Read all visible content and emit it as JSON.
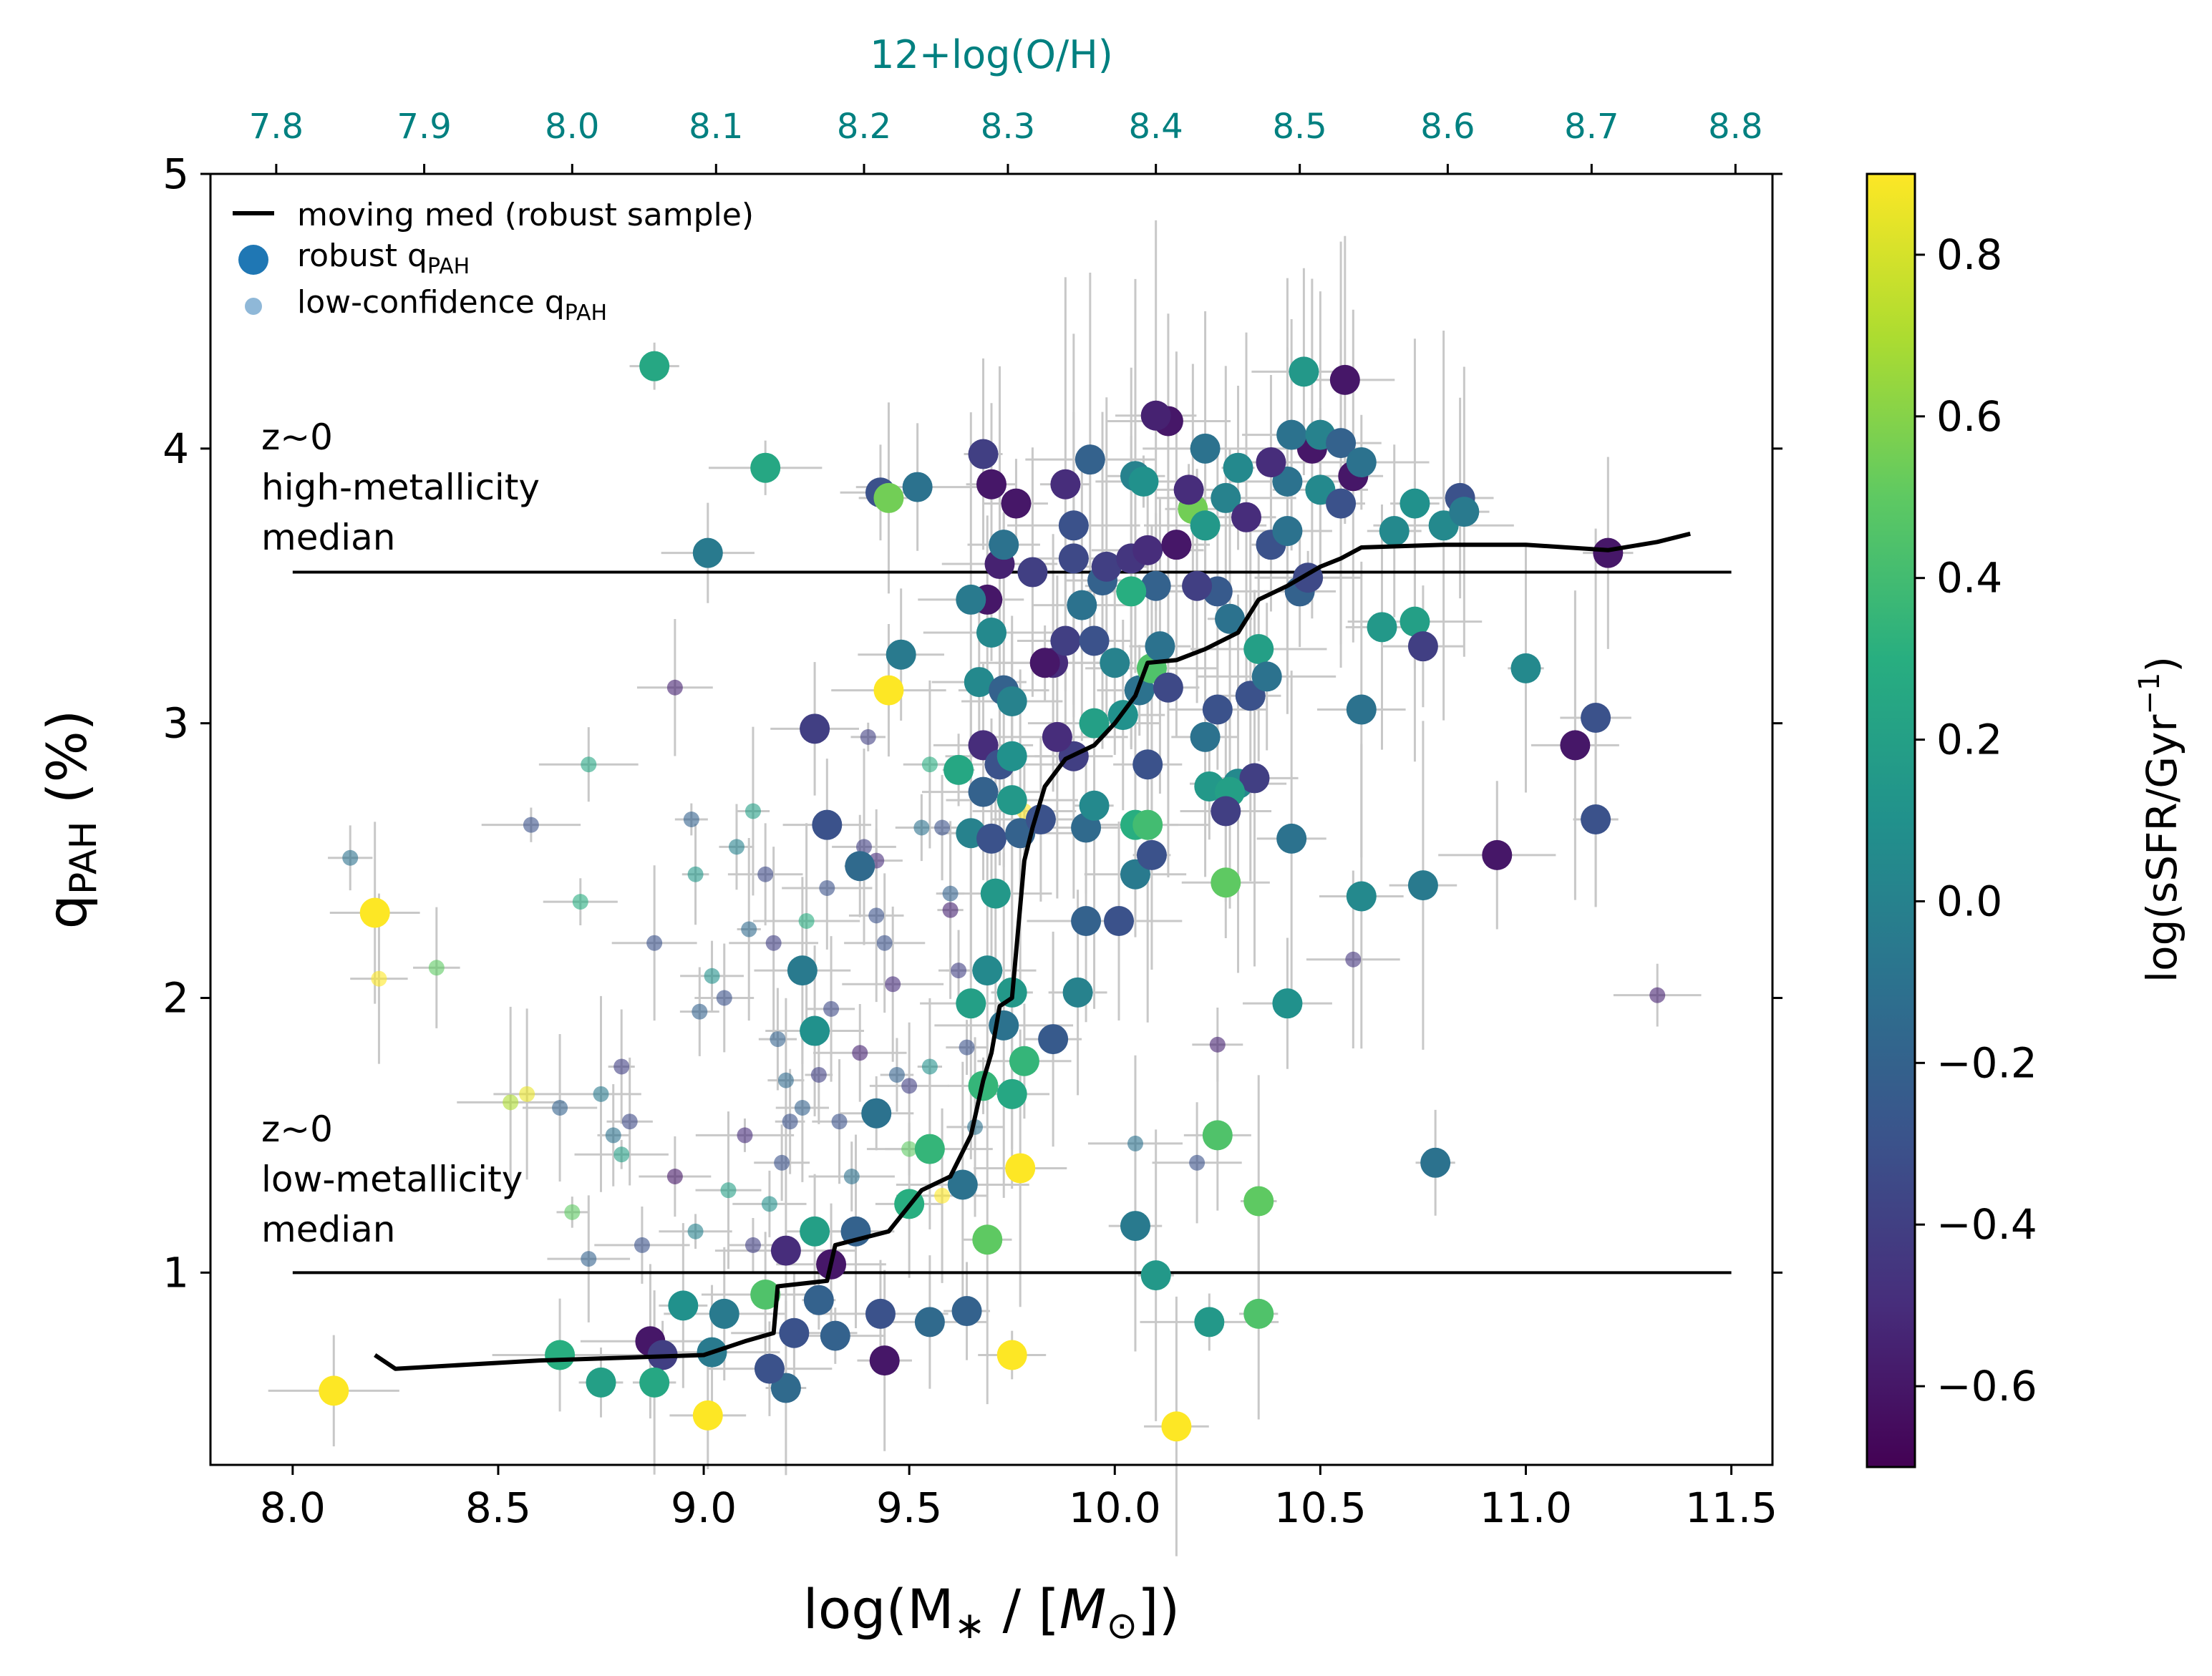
{
  "colors": {
    "top_axis": "#008080",
    "median_line": "#000000",
    "errorbar": "#c8c8c8",
    "reference_line": "#000000"
  },
  "chart_data": {
    "type": "scatter",
    "xlabel_main": "log(M",
    "xlabel_sub": "∗",
    "xlabel_rest": " / [",
    "xlabel_unit_m": "M",
    "xlabel_unit_sub": "⊙",
    "xlabel_close": "])",
    "ylabel_main": "q",
    "ylabel_sub": "PAH",
    "ylabel_rest": " (%)",
    "xlim": [
      7.8,
      11.6
    ],
    "ylim": [
      0.3,
      5.0
    ],
    "x_ticks": [
      "8.0",
      "8.5",
      "9.0",
      "9.5",
      "10.0",
      "10.5",
      "11.0",
      "11.5"
    ],
    "y_ticks": [
      "1",
      "2",
      "3",
      "4",
      "5"
    ],
    "top_axis": {
      "label": "12+log(O/H)",
      "ticks": [
        "7.8",
        "7.9",
        "8.0",
        "8.1",
        "8.2",
        "8.3",
        "8.4",
        "8.5",
        "8.6",
        "8.7",
        "8.8"
      ],
      "tick_logmass": [
        7.96,
        8.32,
        8.68,
        9.03,
        9.39,
        9.74,
        10.1,
        10.45,
        10.81,
        11.16,
        11.51
      ]
    },
    "colorbar": {
      "label": "log(sSFR/Gyr",
      "label_sup": "−1",
      "label_close": ")",
      "range": [
        -0.7,
        0.9
      ],
      "ticks": [
        "−0.6",
        "−0.4",
        "−0.2",
        "0.0",
        "0.2",
        "0.4",
        "0.6",
        "0.8"
      ],
      "tick_values": [
        -0.6,
        -0.4,
        -0.2,
        0.0,
        0.2,
        0.4,
        0.6,
        0.8
      ]
    },
    "legend": {
      "placement": "top-left",
      "median_label": "moving med (robust sample)",
      "robust_label": "robust q",
      "robust_sub": "PAH",
      "lowconf_label": "low-confidence q",
      "lowconf_sub": "PAH"
    },
    "reference_lines": [
      {
        "y": 3.55,
        "x_range": [
          8.0,
          11.5
        ],
        "label_lines": [
          "z~0",
          "high-metallicity",
          "median"
        ]
      },
      {
        "y": 1.0,
        "x_range": [
          8.0,
          11.5
        ],
        "label_lines": [
          "z~0",
          "low-metallicity",
          "median"
        ]
      }
    ],
    "moving_median": [
      [
        8.2,
        0.7
      ],
      [
        8.25,
        0.65
      ],
      [
        8.6,
        0.68
      ],
      [
        9.0,
        0.7
      ],
      [
        9.1,
        0.75
      ],
      [
        9.17,
        0.78
      ],
      [
        9.18,
        0.95
      ],
      [
        9.3,
        0.97
      ],
      [
        9.32,
        1.1
      ],
      [
        9.45,
        1.15
      ],
      [
        9.53,
        1.3
      ],
      [
        9.6,
        1.35
      ],
      [
        9.65,
        1.5
      ],
      [
        9.68,
        1.7
      ],
      [
        9.7,
        1.8
      ],
      [
        9.72,
        1.97
      ],
      [
        9.75,
        2.0
      ],
      [
        9.78,
        2.5
      ],
      [
        9.8,
        2.62
      ],
      [
        9.83,
        2.77
      ],
      [
        9.88,
        2.87
      ],
      [
        9.95,
        2.92
      ],
      [
        10.0,
        3.0
      ],
      [
        10.05,
        3.1
      ],
      [
        10.08,
        3.22
      ],
      [
        10.15,
        3.23
      ],
      [
        10.22,
        3.27
      ],
      [
        10.3,
        3.33
      ],
      [
        10.35,
        3.45
      ],
      [
        10.42,
        3.5
      ],
      [
        10.5,
        3.57
      ],
      [
        10.55,
        3.6
      ],
      [
        10.6,
        3.64
      ],
      [
        10.8,
        3.65
      ],
      [
        11.0,
        3.65
      ],
      [
        11.2,
        3.63
      ],
      [
        11.32,
        3.66
      ],
      [
        11.4,
        3.69
      ]
    ],
    "robust_points": [
      [
        8.88,
        4.3,
        0.25
      ],
      [
        9.15,
        3.93,
        0.25
      ],
      [
        9.01,
        3.62,
        -0.05
      ],
      [
        9.43,
        3.84,
        -0.3
      ],
      [
        9.45,
        3.82,
        0.55
      ],
      [
        9.52,
        3.86,
        -0.1
      ],
      [
        9.45,
        3.12,
        0.9
      ],
      [
        9.48,
        3.25,
        -0.05
      ],
      [
        9.27,
        2.98,
        -0.4
      ],
      [
        9.3,
        2.63,
        -0.3
      ],
      [
        9.38,
        2.48,
        -0.15
      ],
      [
        9.24,
        2.1,
        -0.05
      ],
      [
        9.27,
        1.88,
        0.1
      ],
      [
        9.42,
        1.58,
        -0.1
      ],
      [
        9.55,
        1.45,
        0.35
      ],
      [
        9.5,
        1.25,
        0.3
      ],
      [
        9.37,
        1.15,
        -0.2
      ],
      [
        9.27,
        1.15,
        0.2
      ],
      [
        9.2,
        1.08,
        -0.5
      ],
      [
        9.31,
        1.03,
        -0.6
      ],
      [
        9.15,
        0.92,
        0.45
      ],
      [
        9.22,
        0.78,
        -0.3
      ],
      [
        9.28,
        0.9,
        -0.2
      ],
      [
        9.32,
        0.77,
        -0.2
      ],
      [
        9.43,
        0.85,
        -0.3
      ],
      [
        9.44,
        0.68,
        -0.6
      ],
      [
        9.55,
        0.82,
        -0.15
      ],
      [
        9.64,
        0.86,
        -0.2
      ],
      [
        9.63,
        1.32,
        -0.1
      ],
      [
        9.69,
        1.12,
        0.5
      ],
      [
        9.75,
        0.7,
        0.9
      ],
      [
        9.77,
        1.38,
        0.9
      ],
      [
        9.68,
        1.68,
        0.35
      ],
      [
        9.75,
        1.65,
        0.25
      ],
      [
        9.78,
        1.77,
        0.35
      ],
      [
        9.75,
        2.02,
        0.15
      ],
      [
        9.65,
        1.98,
        0.2
      ],
      [
        9.73,
        1.9,
        -0.1
      ],
      [
        9.85,
        1.85,
        -0.25
      ],
      [
        9.91,
        2.02,
        0.0
      ],
      [
        9.93,
        2.28,
        -0.2
      ],
      [
        10.01,
        2.28,
        -0.3
      ],
      [
        10.05,
        2.45,
        -0.05
      ],
      [
        10.09,
        2.52,
        -0.3
      ],
      [
        10.05,
        2.63,
        0.3
      ],
      [
        10.08,
        2.63,
        0.4
      ],
      [
        9.93,
        2.62,
        -0.15
      ],
      [
        9.95,
        2.7,
        0.05
      ],
      [
        9.9,
        2.88,
        -0.4
      ],
      [
        9.86,
        2.95,
        -0.5
      ],
      [
        9.95,
        3.0,
        0.2
      ],
      [
        10.02,
        3.03,
        0.1
      ],
      [
        10.08,
        2.85,
        -0.3
      ],
      [
        10.06,
        3.12,
        -0.1
      ],
      [
        10.0,
        3.22,
        0.0
      ],
      [
        10.09,
        3.2,
        0.45
      ],
      [
        10.13,
        3.13,
        -0.35
      ],
      [
        10.22,
        2.95,
        -0.1
      ],
      [
        10.25,
        3.05,
        -0.3
      ],
      [
        10.3,
        2.78,
        0.05
      ],
      [
        10.34,
        2.8,
        -0.4
      ],
      [
        10.33,
        3.1,
        -0.3
      ],
      [
        10.35,
        3.27,
        0.2
      ],
      [
        10.37,
        3.17,
        -0.1
      ],
      [
        10.28,
        3.38,
        -0.1
      ],
      [
        10.25,
        3.48,
        -0.25
      ],
      [
        10.2,
        3.5,
        -0.4
      ],
      [
        10.1,
        3.5,
        -0.2
      ],
      [
        10.04,
        3.48,
        0.3
      ],
      [
        9.97,
        3.52,
        -0.2
      ],
      [
        9.92,
        3.43,
        -0.1
      ],
      [
        9.9,
        3.6,
        -0.35
      ],
      [
        9.98,
        3.57,
        -0.4
      ],
      [
        10.04,
        3.6,
        -0.45
      ],
      [
        10.08,
        3.63,
        -0.5
      ],
      [
        10.15,
        3.65,
        -0.6
      ],
      [
        10.19,
        3.78,
        0.55
      ],
      [
        10.22,
        3.72,
        0.15
      ],
      [
        10.27,
        3.82,
        0.0
      ],
      [
        10.32,
        3.75,
        -0.5
      ],
      [
        10.38,
        3.65,
        -0.3
      ],
      [
        10.42,
        3.7,
        -0.1
      ],
      [
        10.45,
        3.48,
        -0.2
      ],
      [
        10.47,
        3.53,
        -0.35
      ],
      [
        10.42,
        3.88,
        -0.1
      ],
      [
        10.48,
        4.0,
        -0.6
      ],
      [
        10.43,
        4.05,
        -0.1
      ],
      [
        10.5,
        4.05,
        0.0
      ],
      [
        10.55,
        4.02,
        -0.2
      ],
      [
        10.5,
        3.85,
        0.05
      ],
      [
        10.55,
        3.8,
        -0.3
      ],
      [
        10.58,
        3.9,
        -0.6
      ],
      [
        10.6,
        3.95,
        -0.1
      ],
      [
        10.56,
        4.25,
        -0.6
      ],
      [
        10.46,
        4.28,
        0.15
      ],
      [
        10.22,
        4.0,
        -0.1
      ],
      [
        10.18,
        3.85,
        -0.5
      ],
      [
        10.13,
        4.1,
        -0.6
      ],
      [
        10.1,
        4.12,
        -0.55
      ],
      [
        10.05,
        3.9,
        0.0
      ],
      [
        10.07,
        3.88,
        0.1
      ],
      [
        10.3,
        3.93,
        0.05
      ],
      [
        10.38,
        3.95,
        -0.5
      ],
      [
        9.94,
        3.96,
        -0.2
      ],
      [
        9.88,
        3.87,
        -0.5
      ],
      [
        9.9,
        3.72,
        -0.3
      ],
      [
        9.8,
        3.55,
        -0.4
      ],
      [
        9.72,
        3.58,
        -0.55
      ],
      [
        9.69,
        3.45,
        -0.6
      ],
      [
        9.65,
        3.45,
        -0.05
      ],
      [
        9.7,
        3.33,
        0.05
      ],
      [
        9.67,
        3.15,
        0.05
      ],
      [
        9.73,
        3.12,
        -0.2
      ],
      [
        9.75,
        3.08,
        0.0
      ],
      [
        9.68,
        2.92,
        -0.5
      ],
      [
        9.72,
        2.85,
        -0.3
      ],
      [
        9.75,
        2.88,
        0.1
      ],
      [
        9.62,
        2.83,
        0.25
      ],
      [
        9.68,
        2.75,
        -0.2
      ],
      [
        9.75,
        2.72,
        0.15
      ],
      [
        9.65,
        2.6,
        0.0
      ],
      [
        9.7,
        2.58,
        -0.3
      ],
      [
        9.77,
        2.6,
        -0.2
      ],
      [
        9.82,
        2.65,
        -0.3
      ],
      [
        9.71,
        2.38,
        0.15
      ],
      [
        9.69,
        2.1,
        0.05
      ],
      [
        9.85,
        3.22,
        -0.5
      ],
      [
        9.88,
        3.3,
        -0.4
      ],
      [
        9.76,
        3.8,
        -0.6
      ],
      [
        9.7,
        3.87,
        -0.6
      ],
      [
        9.68,
        3.98,
        -0.4
      ],
      [
        9.73,
        3.65,
        -0.1
      ],
      [
        9.83,
        3.22,
        -0.6
      ],
      [
        9.95,
        3.3,
        -0.3
      ],
      [
        10.11,
        3.28,
        -0.1
      ],
      [
        10.23,
        2.77,
        0.15
      ],
      [
        10.28,
        2.75,
        0.2
      ],
      [
        10.27,
        2.68,
        -0.4
      ],
      [
        10.27,
        2.42,
        0.5
      ],
      [
        10.43,
        2.58,
        -0.1
      ],
      [
        10.25,
        1.5,
        0.45
      ],
      [
        10.35,
        1.26,
        0.5
      ],
      [
        10.35,
        0.85,
        0.45
      ],
      [
        10.23,
        0.82,
        0.15
      ],
      [
        10.1,
        0.99,
        0.15
      ],
      [
        10.05,
        1.17,
        -0.05
      ],
      [
        10.42,
        1.98,
        0.1
      ],
      [
        10.6,
        2.37,
        0.05
      ],
      [
        10.75,
        2.41,
        -0.05
      ],
      [
        10.78,
        1.4,
        -0.1
      ],
      [
        10.65,
        3.35,
        0.15
      ],
      [
        10.73,
        3.37,
        0.2
      ],
      [
        10.75,
        3.28,
        -0.4
      ],
      [
        10.68,
        3.7,
        0.05
      ],
      [
        10.73,
        3.8,
        0.1
      ],
      [
        10.8,
        3.72,
        0.05
      ],
      [
        10.84,
        3.82,
        -0.3
      ],
      [
        10.85,
        3.77,
        -0.05
      ],
      [
        10.6,
        3.05,
        -0.1
      ],
      [
        11.0,
        3.2,
        0.05
      ],
      [
        11.12,
        2.92,
        -0.6
      ],
      [
        11.17,
        3.02,
        -0.3
      ],
      [
        11.17,
        2.65,
        -0.3
      ],
      [
        10.93,
        2.52,
        -0.6
      ],
      [
        11.2,
        3.62,
        -0.6
      ],
      [
        8.2,
        2.31,
        0.9
      ],
      [
        8.1,
        0.57,
        0.9
      ],
      [
        8.65,
        0.7,
        0.3
      ],
      [
        8.75,
        0.6,
        0.2
      ],
      [
        8.87,
        0.75,
        -0.6
      ],
      [
        8.9,
        0.7,
        -0.4
      ],
      [
        8.88,
        0.6,
        0.25
      ],
      [
        8.95,
        0.88,
        0.1
      ],
      [
        9.01,
        0.48,
        0.9
      ],
      [
        9.05,
        0.85,
        -0.05
      ],
      [
        9.2,
        0.58,
        -0.15
      ],
      [
        9.16,
        0.65,
        -0.3
      ],
      [
        9.02,
        0.71,
        -0.05
      ],
      [
        10.15,
        0.44,
        0.9
      ]
    ],
    "lowconf_points": [
      [
        8.14,
        2.51,
        -0.1
      ],
      [
        8.21,
        2.07,
        0.9
      ],
      [
        8.35,
        2.11,
        0.5
      ],
      [
        8.58,
        2.63,
        -0.3
      ],
      [
        8.7,
        2.35,
        0.3
      ],
      [
        8.72,
        2.85,
        0.25
      ],
      [
        8.75,
        1.65,
        -0.05
      ],
      [
        8.78,
        1.5,
        -0.1
      ],
      [
        8.8,
        1.43,
        0.2
      ],
      [
        8.8,
        1.75,
        -0.4
      ],
      [
        8.82,
        1.55,
        -0.35
      ],
      [
        8.88,
        2.2,
        -0.3
      ],
      [
        8.93,
        3.13,
        -0.55
      ],
      [
        8.97,
        2.65,
        -0.2
      ],
      [
        8.98,
        2.45,
        0.15
      ],
      [
        8.99,
        1.95,
        -0.2
      ],
      [
        9.02,
        2.08,
        0.1
      ],
      [
        9.05,
        2.0,
        -0.3
      ],
      [
        9.08,
        2.55,
        0.0
      ],
      [
        9.11,
        2.25,
        -0.15
      ],
      [
        9.12,
        2.68,
        0.2
      ],
      [
        9.15,
        2.45,
        -0.35
      ],
      [
        9.17,
        2.2,
        -0.4
      ],
      [
        9.18,
        1.85,
        -0.2
      ],
      [
        9.2,
        1.7,
        -0.15
      ],
      [
        9.21,
        1.55,
        -0.3
      ],
      [
        9.25,
        2.28,
        0.3
      ],
      [
        9.28,
        1.72,
        -0.4
      ],
      [
        9.3,
        2.4,
        -0.3
      ],
      [
        9.33,
        1.55,
        -0.3
      ],
      [
        9.36,
        1.35,
        -0.1
      ],
      [
        9.38,
        1.8,
        -0.55
      ],
      [
        9.39,
        2.55,
        -0.4
      ],
      [
        9.4,
        2.95,
        -0.4
      ],
      [
        9.42,
        2.3,
        -0.3
      ],
      [
        9.44,
        2.2,
        -0.3
      ],
      [
        9.46,
        2.05,
        -0.5
      ],
      [
        9.47,
        1.72,
        -0.2
      ],
      [
        9.5,
        1.68,
        -0.4
      ],
      [
        9.53,
        2.62,
        -0.1
      ],
      [
        9.55,
        2.85,
        0.3
      ],
      [
        9.58,
        2.62,
        -0.3
      ],
      [
        9.6,
        2.38,
        -0.2
      ],
      [
        9.62,
        2.1,
        -0.4
      ],
      [
        9.64,
        1.82,
        -0.3
      ],
      [
        9.66,
        1.53,
        -0.1
      ],
      [
        9.31,
        1.96,
        -0.35
      ],
      [
        9.24,
        1.6,
        -0.2
      ],
      [
        9.19,
        1.4,
        -0.3
      ],
      [
        9.16,
        1.25,
        0.1
      ],
      [
        9.12,
        1.1,
        -0.4
      ],
      [
        9.06,
        1.3,
        0.2
      ],
      [
        8.98,
        1.15,
        0.0
      ],
      [
        8.93,
        1.35,
        -0.6
      ],
      [
        8.85,
        1.1,
        -0.3
      ],
      [
        8.72,
        1.05,
        -0.2
      ],
      [
        8.68,
        1.22,
        0.5
      ],
      [
        8.65,
        1.6,
        -0.2
      ],
      [
        8.57,
        1.65,
        0.85
      ],
      [
        8.53,
        1.62,
        0.7
      ],
      [
        9.42,
        2.5,
        -0.5
      ],
      [
        9.6,
        2.32,
        -0.55
      ],
      [
        9.1,
        1.5,
        -0.5
      ],
      [
        9.78,
        2.68,
        0.9
      ],
      [
        10.05,
        1.47,
        -0.1
      ],
      [
        10.2,
        1.4,
        -0.3
      ],
      [
        10.25,
        1.83,
        -0.55
      ],
      [
        10.58,
        2.14,
        -0.45
      ],
      [
        11.32,
        2.01,
        -0.55
      ],
      [
        9.58,
        1.28,
        0.9
      ],
      [
        9.55,
        1.75,
        0.1
      ],
      [
        9.5,
        1.45,
        0.5
      ]
    ]
  }
}
